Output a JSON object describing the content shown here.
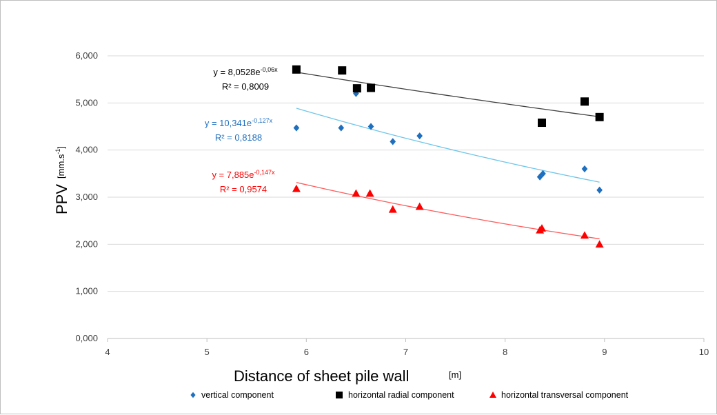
{
  "chart_data": {
    "type": "scatter",
    "xlabel": "Distance of sheet pile wall",
    "xunit": "[m]",
    "ylabel": "PPV",
    "yunit_main": "[mm.s",
    "yunit_sup": "-1",
    "yunit_end": "]",
    "xlim": [
      4,
      10
    ],
    "ylim": [
      0,
      6
    ],
    "x_ticks": [
      "4",
      "5",
      "6",
      "7",
      "8",
      "9",
      "10"
    ],
    "y_ticks": [
      "0,000",
      "1,000",
      "2,000",
      "3,000",
      "4,000",
      "5,000",
      "6,000"
    ],
    "grid": "horizontal",
    "legend_position": "bottom",
    "series": [
      {
        "name": "vertical component",
        "color": "#1f6fbf",
        "marker": "diamond",
        "x": [
          5.9,
          6.35,
          6.5,
          6.65,
          6.87,
          7.14,
          8.35,
          8.38,
          8.8,
          8.95
        ],
        "y": [
          4.47,
          4.47,
          5.2,
          4.5,
          4.18,
          4.3,
          3.43,
          3.5,
          3.6,
          3.15
        ],
        "trendline": {
          "a": 10.341,
          "b": -0.127,
          "x_range": [
            5.9,
            8.95
          ],
          "color": "#6ec6ea"
        },
        "equation": "y = 10,341e",
        "equation_exp": "-0,127x",
        "r2": "R² = 0,8188",
        "label_color": "#1f6fbf"
      },
      {
        "name": "horizontal radial component",
        "color": "#000000",
        "marker": "square",
        "x": [
          5.9,
          6.36,
          6.51,
          6.65,
          8.37,
          8.8,
          8.95
        ],
        "y": [
          5.71,
          5.69,
          5.31,
          5.32,
          4.58,
          5.03,
          4.7
        ],
        "trendline": {
          "a": 8.0528,
          "b": -0.06,
          "x_range": [
            5.9,
            8.95
          ],
          "color": "#404040"
        },
        "equation": "y = 8,0528e",
        "equation_exp": "-0,06x",
        "r2": "R² = 0,8009",
        "label_color": "#000000"
      },
      {
        "name": "horizontal transversal component",
        "color": "#ff0000",
        "marker": "triangle",
        "x": [
          5.9,
          6.5,
          6.64,
          6.87,
          7.14,
          8.35,
          8.37,
          8.8,
          8.95
        ],
        "y": [
          3.18,
          3.08,
          3.08,
          2.74,
          2.8,
          2.3,
          2.34,
          2.19,
          2.0
        ],
        "trendline": {
          "a": 7.885,
          "b": -0.147,
          "x_range": [
            5.9,
            8.95
          ],
          "color": "#ff5a5a"
        },
        "equation": "y = 7,885e",
        "equation_exp": "-0,147x",
        "r2": "R² = 0,9574",
        "label_color": "#ff0000"
      }
    ]
  }
}
